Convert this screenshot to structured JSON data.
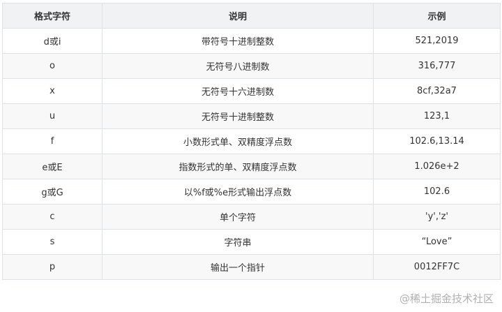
{
  "headers": [
    "格式字符",
    "说明",
    "示例"
  ],
  "rows": [
    [
      "d或i",
      "带符号十进制整数",
      "521,2019"
    ],
    [
      "o",
      "无符号八进制数",
      "316,777"
    ],
    [
      "x",
      "无符号十六进制数",
      "8cf,32a7"
    ],
    [
      "u",
      "无符号十进制整数",
      "123,1"
    ],
    [
      "f",
      "小数形式单、双精度浮点数",
      "102.6,13.14"
    ],
    [
      "e或E",
      "指数形式的单、双精度浮点数",
      "1.026e+2"
    ],
    [
      "g或G",
      "以%f或%e形式输出浮点数",
      "102.6"
    ],
    [
      "c",
      "单个字符",
      "'y','z'"
    ],
    [
      "s",
      "字符串",
      "“Love”"
    ],
    [
      "p",
      "输出一个指针",
      "0012FF7C"
    ]
  ],
  "watermark": "@稀土掘金技术社区"
}
